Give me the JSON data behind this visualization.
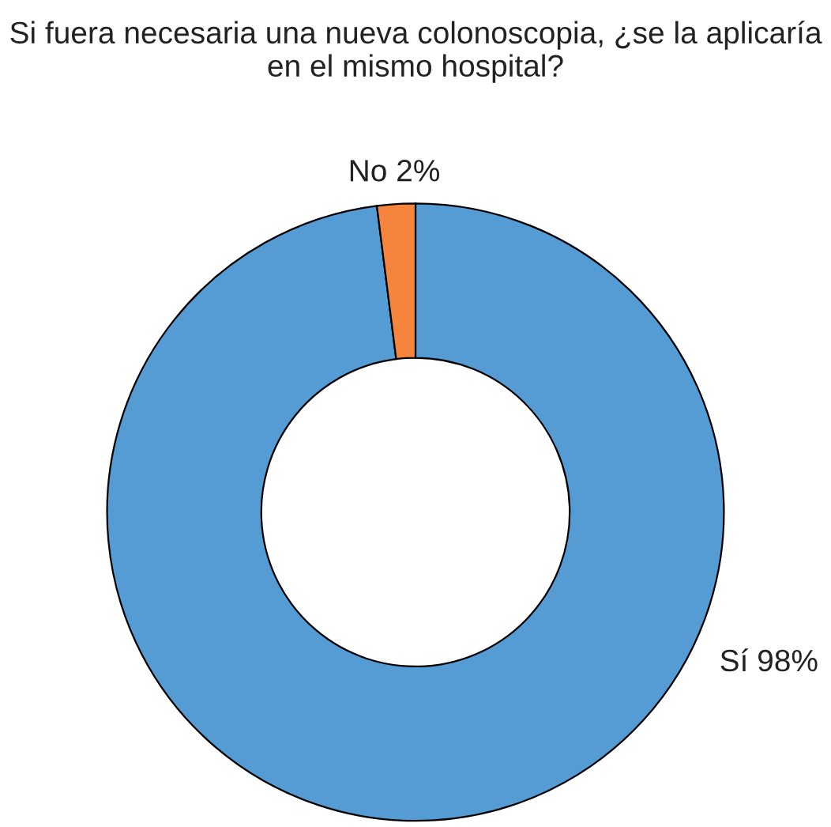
{
  "chart_data": {
    "type": "donut",
    "title": "Si fuera necesaria una nueva colonoscopia, ¿se la aplicaría en el mismo hospital?",
    "categories": [
      "Sí",
      "No"
    ],
    "values": [
      98,
      2
    ],
    "colors": [
      "#559bd4",
      "#f5843c"
    ],
    "value_labels": [
      "98%",
      "2%"
    ],
    "legend": false
  }
}
